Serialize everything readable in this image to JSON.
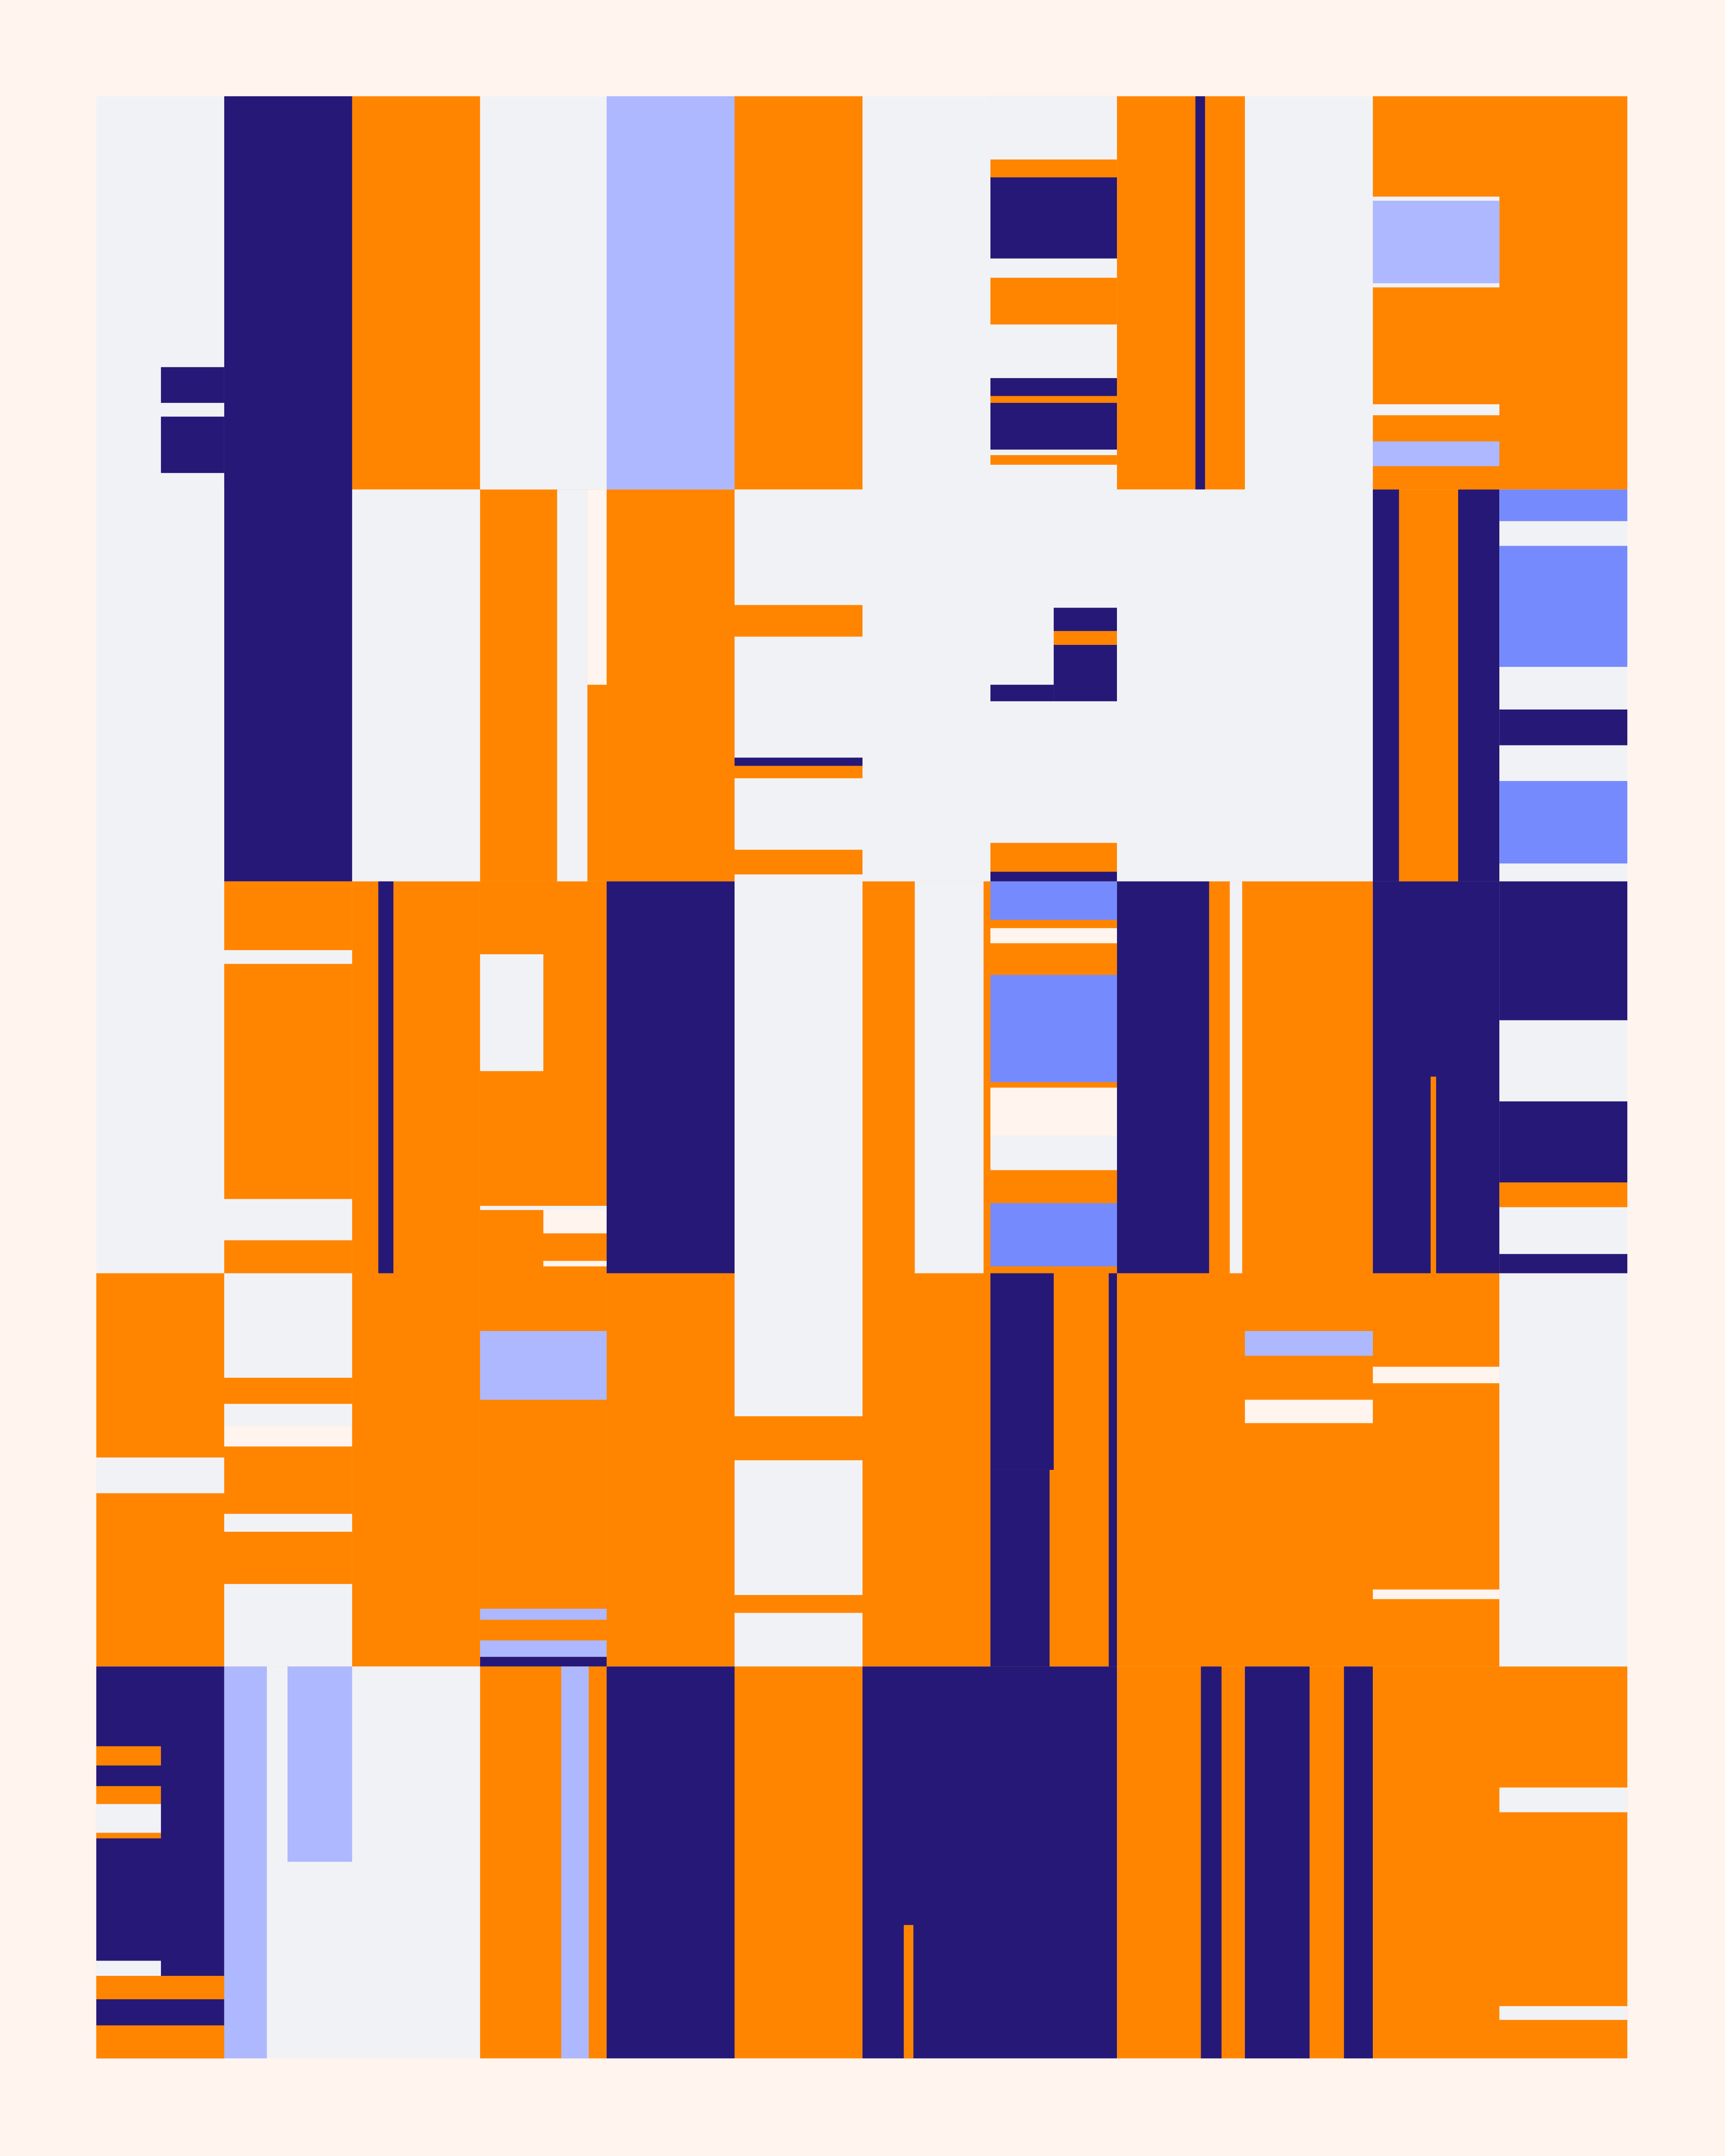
{
  "artwork": {
    "style": "abstract geometric grid of vertical colored blocks and stripes",
    "palette": {
      "background": "#FFF4EE",
      "light": "#F1F2F6",
      "navy": "#261877",
      "orange": "#FF8500",
      "lavender": "#AEB8FE",
      "blue": "#758BFD"
    }
  }
}
